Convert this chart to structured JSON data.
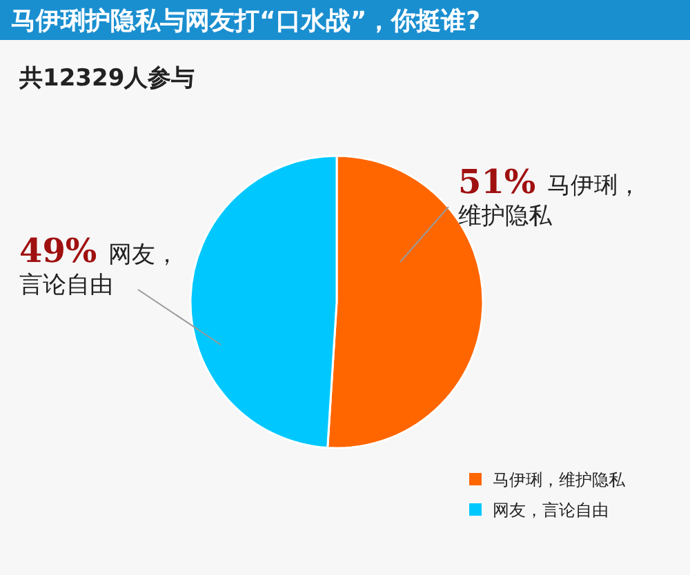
{
  "chart_data": {
    "type": "pie",
    "title": "马伊琍护隐私与网友打“口水战”，你挺谁?",
    "subtitle": "共12329人参与",
    "categories": [
      "马伊琍，维护隐私",
      "网友，言论自由"
    ],
    "values": [
      51,
      49
    ],
    "colors": [
      "#ff6600",
      "#00c8ff"
    ],
    "value_labels": [
      "51%",
      "49%"
    ],
    "legend": "bottom right"
  }
}
